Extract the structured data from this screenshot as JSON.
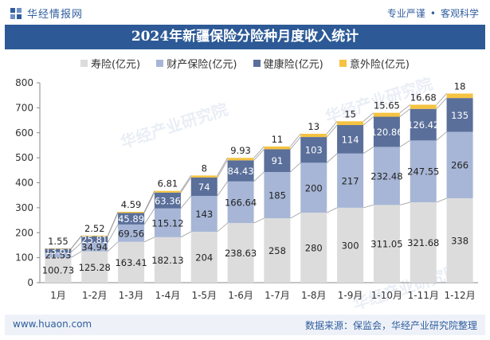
{
  "header": {
    "brand": "华经情报网",
    "slogan_left": "专业严谨",
    "slogan_right": "客观科学"
  },
  "footer": {
    "url": "www.huaon.com",
    "source": "数据来源：保监会，华经产业研究院整理"
  },
  "watermark": {
    "text": "华经产业研究院",
    "url": "www.huaon.com"
  },
  "colors": {
    "title_bg": "#2d5a96",
    "life": "#dcdcdc",
    "property": "#a7b6d6",
    "health": "#5a6f9a",
    "accident": "#f5c342"
  },
  "chart_data": {
    "type": "bar",
    "stacked": true,
    "title": "2024年新疆保险分险种月度收入统计",
    "xlabel": "",
    "ylabel": "",
    "categories": [
      "1月",
      "1-2月",
      "1-3月",
      "1-4月",
      "1-5月",
      "1-6月",
      "1-7月",
      "1-8月",
      "1-9月",
      "1-10月",
      "1-11月",
      "1-12月"
    ],
    "series": [
      {
        "name": "寿险(亿元)",
        "color": "#dcdcdc",
        "values": [
          100.73,
          125.28,
          163.41,
          182.13,
          204,
          238.63,
          258,
          280,
          300,
          311.05,
          321.68,
          338
        ],
        "labels": [
          "100.73",
          "125.28",
          "163.41",
          "182.13",
          "204",
          "238.63",
          "258",
          "280",
          "300",
          "311.05",
          "321.68",
          "338"
        ]
      },
      {
        "name": "财产保险(亿元)",
        "color": "#a7b6d6",
        "values": [
          21.53,
          34.94,
          69.56,
          115.12,
          143,
          166.64,
          185,
          200,
          217,
          232.48,
          247.55,
          266
        ],
        "labels": [
          "21.53",
          "34.94",
          "69.56",
          "115.12",
          "143",
          "166.64",
          "185",
          "200",
          "217",
          "232.48",
          "247.55",
          "266"
        ]
      },
      {
        "name": "健康险(亿元)",
        "color": "#5a6f9a",
        "values": [
          13.61,
          25.81,
          45.89,
          63.36,
          74,
          84.43,
          91,
          103,
          114,
          120.86,
          126.42,
          135
        ],
        "labels": [
          "13.61",
          "25.81",
          "45.89",
          "63.36",
          "74",
          "84.43",
          "91",
          "103",
          "114",
          "120.86",
          "126.42",
          "135"
        ]
      },
      {
        "name": "意外险(亿元)",
        "color": "#f5c342",
        "values": [
          1.55,
          2.52,
          4.59,
          6.81,
          8,
          9.93,
          11,
          13,
          15,
          15.65,
          16.68,
          18
        ],
        "labels": [
          "1.55",
          "2.52",
          "4.59",
          "6.81",
          "8",
          "9.93",
          "11",
          "13",
          "15",
          "15.65",
          "16.68",
          "18"
        ]
      }
    ],
    "ylim": [
      0,
      800
    ],
    "yticks": [
      0,
      100,
      200,
      300,
      400,
      500,
      600,
      700,
      800
    ],
    "ytick_labels": [
      "0",
      "100",
      "200",
      "300",
      "400",
      "500",
      "600",
      "700",
      "800"
    ],
    "grid": false,
    "legend_position": "top"
  }
}
